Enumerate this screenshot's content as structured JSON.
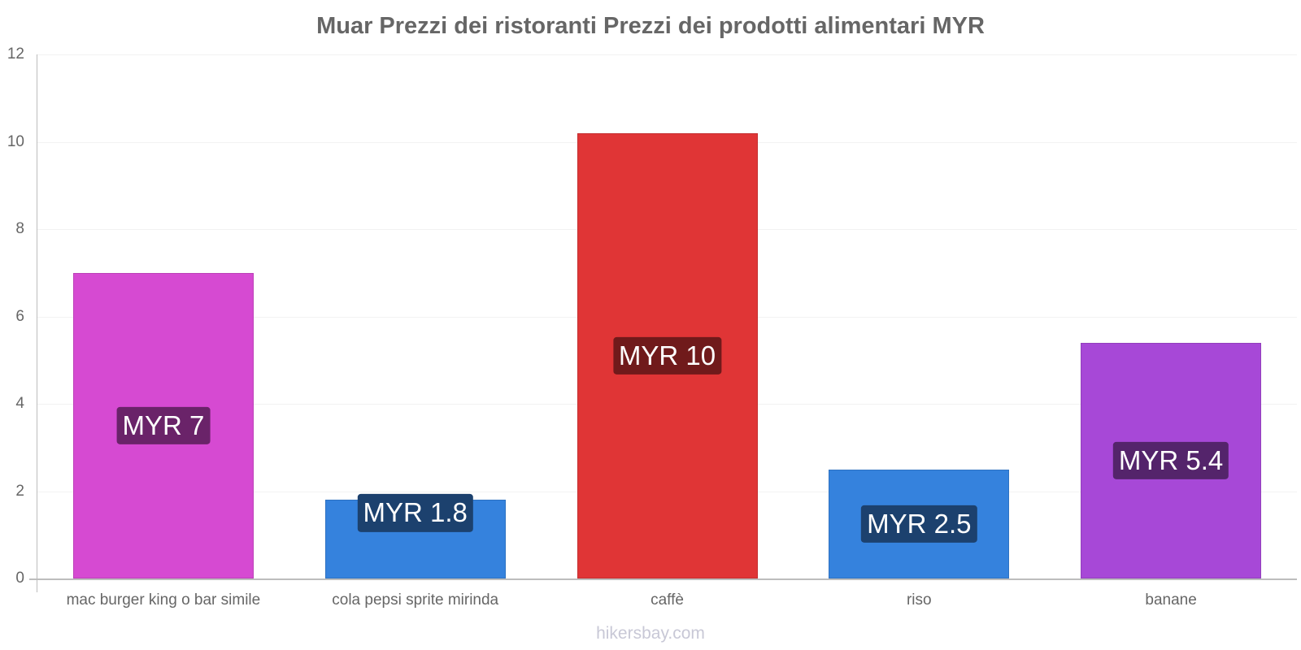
{
  "chart_data": {
    "type": "bar",
    "title": "Muar Prezzi dei ristoranti Prezzi dei prodotti alimentari MYR",
    "xlabel": "",
    "ylabel": "",
    "ylim": [
      0,
      12
    ],
    "yticks": [
      "0",
      "2",
      "4",
      "6",
      "8",
      "10",
      "12"
    ],
    "grid": true,
    "legend": "none",
    "categories": [
      "mac burger king o bar simile",
      "cola pepsi sprite mirinda",
      "caffè",
      "riso",
      "banane"
    ],
    "values": [
      7.0,
      1.8,
      10.2,
      2.5,
      5.4
    ],
    "data_labels": [
      "MYR 7",
      "MYR 1.8",
      "MYR 10",
      "MYR 2.5",
      "MYR 5.4"
    ],
    "colors": [
      "#d64ad2",
      "#3582dd",
      "#e03536",
      "#3582dd",
      "#a748d7"
    ],
    "label_bg_colors": [
      "#6a2369",
      "#1c416e",
      "#701a1b",
      "#1c416e",
      "#54246b"
    ]
  },
  "watermark": "hikersbay.com"
}
